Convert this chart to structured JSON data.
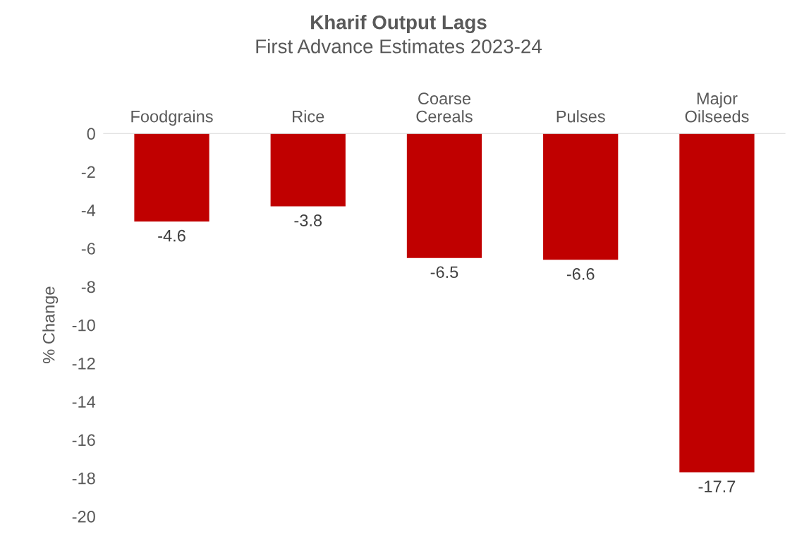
{
  "chart_data": {
    "type": "bar",
    "title": "Kharif Output Lags",
    "subtitle": "First Advance Estimates 2023-24",
    "ylabel": "% Change",
    "categories": [
      "Foodgrains",
      "Rice",
      "Coarse\nCereals",
      "Pulses",
      "Major\nOilseeds"
    ],
    "values": [
      -4.6,
      -3.8,
      -6.5,
      -6.6,
      -17.7
    ],
    "color": "#c00000",
    "ylim": [
      -20,
      0
    ],
    "yticks": [
      -20,
      -18,
      -16,
      -14,
      -12,
      -10,
      -8,
      -6,
      -4,
      -2,
      0
    ],
    "grid": false,
    "legend": false,
    "data_labels": true
  }
}
